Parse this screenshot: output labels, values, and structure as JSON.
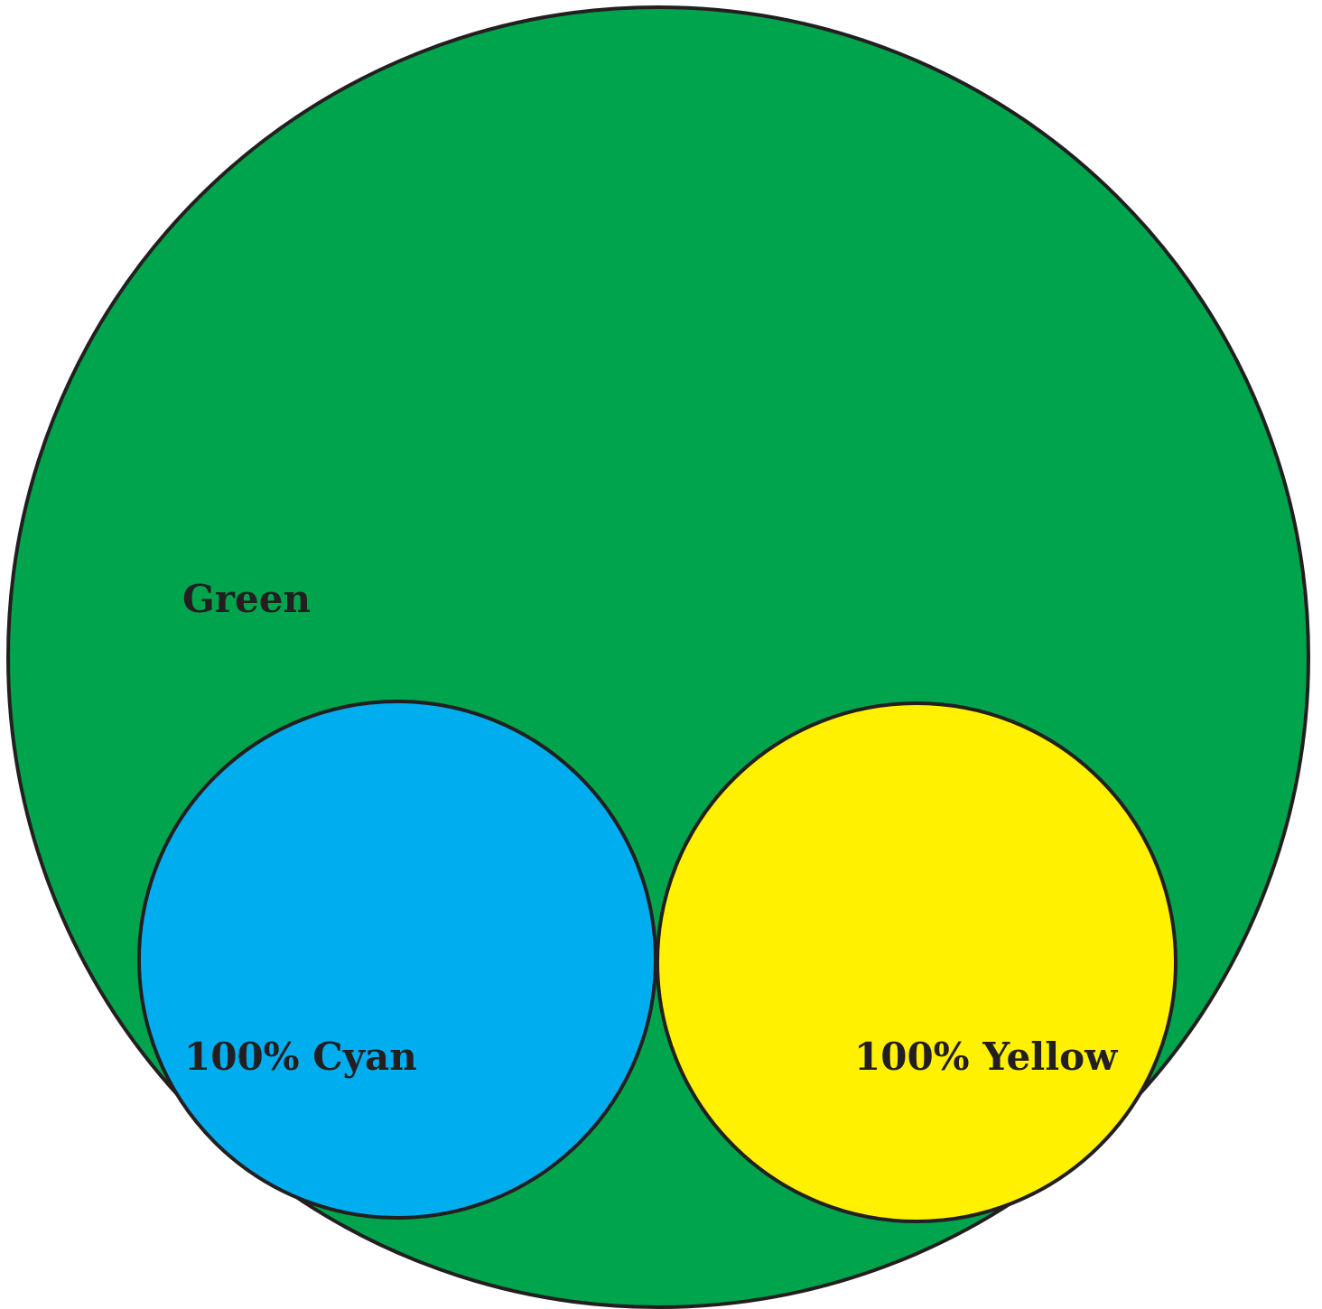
{
  "colors": {
    "green": "#00a44c",
    "cyan": "#00aeef",
    "yellow": "#fff100",
    "outline": "#231f20",
    "label": "#231f20"
  },
  "labels": {
    "green": "Green",
    "cyan": "100% Cyan",
    "yellow": "100% Yellow"
  }
}
